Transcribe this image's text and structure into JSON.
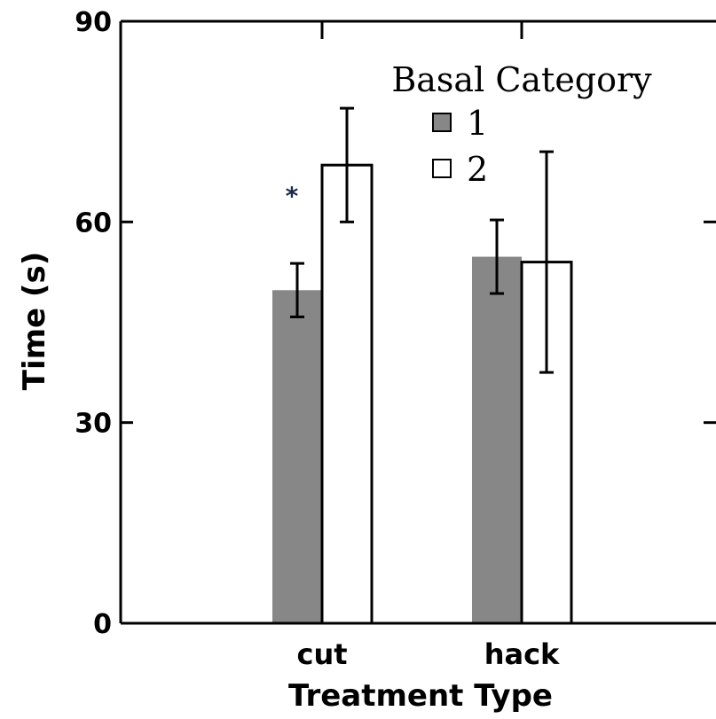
{
  "chart_data": {
    "type": "bar",
    "xlabel": "Treatment Type",
    "ylabel": "Time (s)",
    "ylim": [
      0,
      90
    ],
    "yticks": [
      0,
      30,
      60,
      90
    ],
    "categories": [
      "cut",
      "hack"
    ],
    "legend": {
      "title": "Basal Category",
      "placement": "top-center"
    },
    "series": [
      {
        "name": "1",
        "color": "#878787",
        "values": [
          49.8,
          54.8
        ],
        "error": [
          4.0,
          5.5
        ]
      },
      {
        "name": "2",
        "color": "#ffffff",
        "values": [
          68.5,
          54.0
        ],
        "error": [
          8.5,
          16.5
        ]
      }
    ],
    "annotations": [
      {
        "text": "*",
        "category": "cut",
        "value": 65
      }
    ],
    "grid": false
  }
}
